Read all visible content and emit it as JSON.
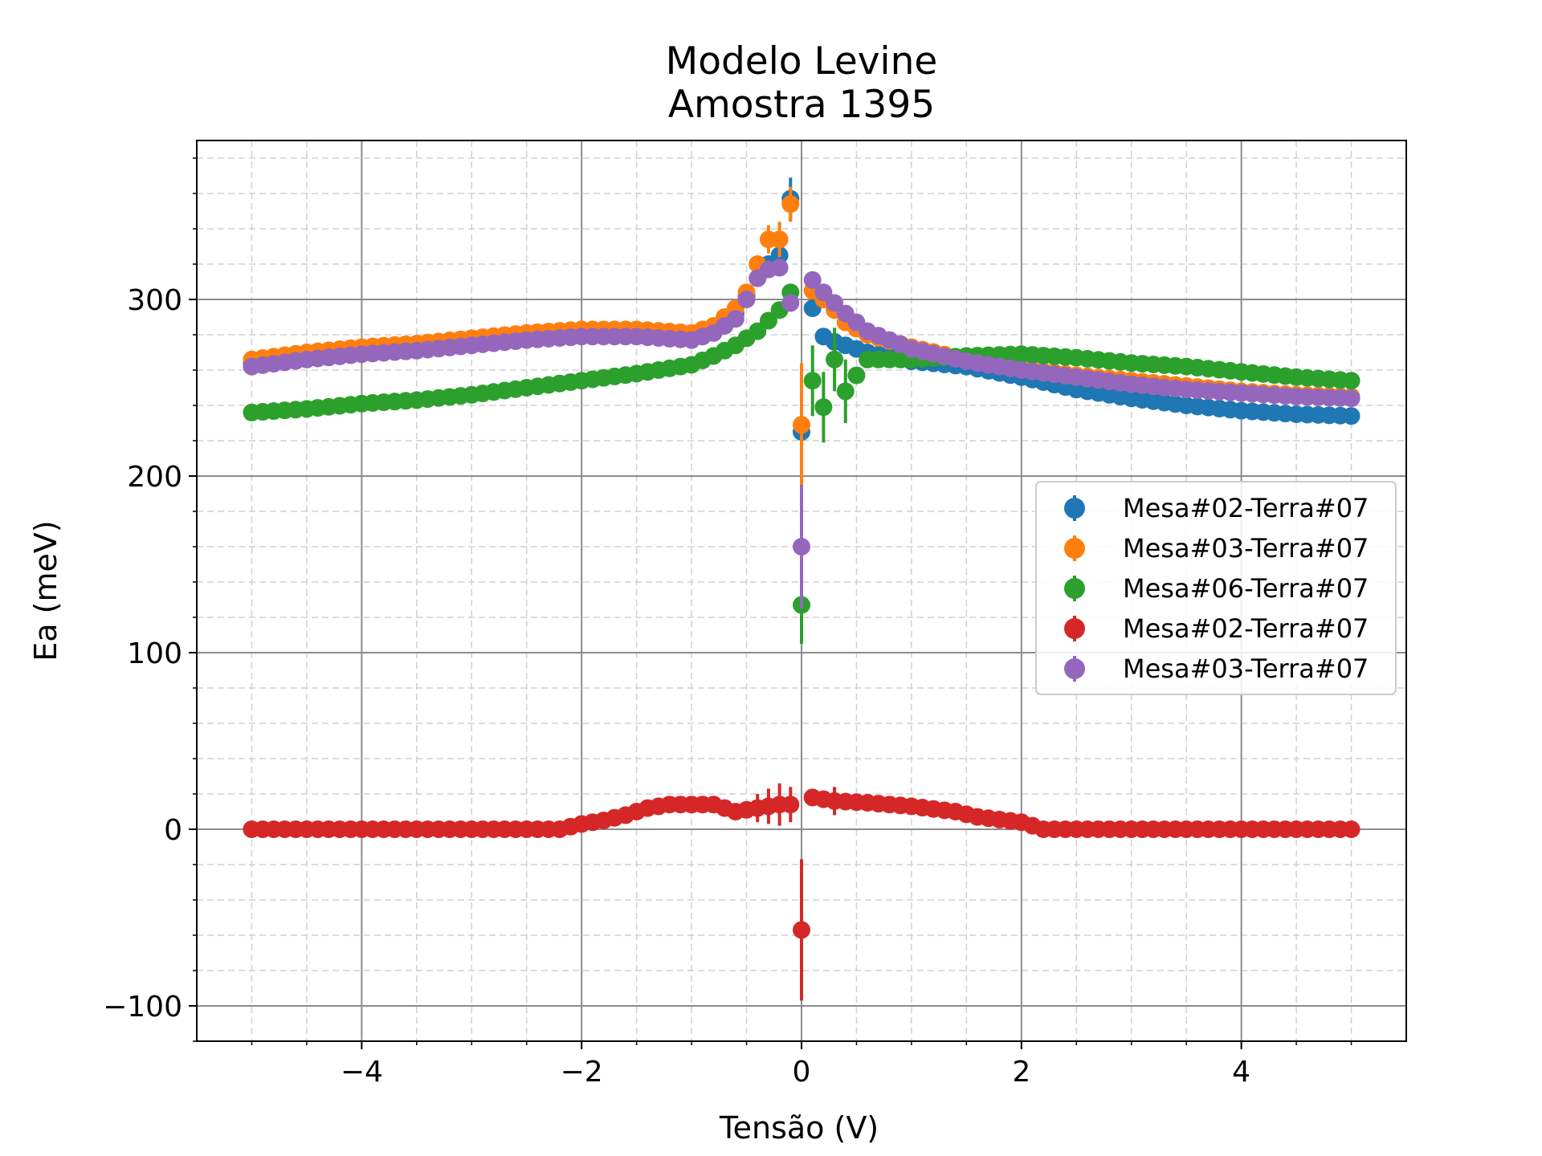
{
  "chart_data": {
    "type": "scatter",
    "title": "Modelo Levine",
    "subtitle": "Amostra 1395",
    "xlabel": "Tensão (V)",
    "ylabel": "Ea (meV)",
    "xlim": [
      -5.5,
      5.5
    ],
    "ylim": [
      -120,
      390
    ],
    "xticks": [
      -4,
      -2,
      0,
      2,
      4
    ],
    "xtick_labels": [
      "−4",
      "−2",
      "0",
      "2",
      "4"
    ],
    "yticks": [
      -100,
      0,
      100,
      200,
      300
    ],
    "ytick_labels": [
      "−100",
      "0",
      "100",
      "200",
      "300"
    ],
    "grid": true,
    "minor_grid": true,
    "legend_position": "center-right",
    "series": [
      {
        "name": "Mesa#02-Terra#07",
        "color": "#1f77b4",
        "points": [
          [
            -5.0,
            264
          ],
          [
            -4.5,
            268
          ],
          [
            -4.0,
            271
          ],
          [
            -3.5,
            273
          ],
          [
            -3.0,
            276
          ],
          [
            -2.5,
            279
          ],
          [
            -2.0,
            281
          ],
          [
            -1.5,
            281
          ],
          [
            -1.0,
            279
          ],
          [
            -0.8,
            282
          ],
          [
            -0.6,
            292
          ],
          [
            -0.5,
            302
          ],
          [
            -0.4,
            312
          ],
          [
            -0.3,
            320
          ],
          [
            -0.2,
            325
          ],
          [
            -0.1,
            357
          ],
          [
            0.0,
            225
          ],
          [
            0.1,
            295
          ],
          [
            0.2,
            279
          ],
          [
            0.3,
            276
          ],
          [
            0.4,
            274
          ],
          [
            0.6,
            270
          ],
          [
            1.0,
            265
          ],
          [
            1.5,
            262
          ],
          [
            2.0,
            256
          ],
          [
            2.5,
            249
          ],
          [
            3.0,
            244
          ],
          [
            3.5,
            240
          ],
          [
            4.0,
            237
          ],
          [
            4.5,
            235
          ],
          [
            5.0,
            234
          ]
        ],
        "errors": [
          [
            -0.2,
            10
          ],
          [
            -0.1,
            12
          ],
          [
            0.0,
            35
          ]
        ]
      },
      {
        "name": "Mesa#03-Terra#07",
        "color": "#ff7f0e",
        "points": [
          [
            -5.0,
            266
          ],
          [
            -4.5,
            270
          ],
          [
            -4.0,
            273
          ],
          [
            -3.5,
            275
          ],
          [
            -3.0,
            278
          ],
          [
            -2.5,
            281
          ],
          [
            -2.0,
            283
          ],
          [
            -1.5,
            283
          ],
          [
            -1.0,
            281
          ],
          [
            -0.8,
            285
          ],
          [
            -0.6,
            295
          ],
          [
            -0.5,
            304
          ],
          [
            -0.4,
            320
          ],
          [
            -0.3,
            334
          ],
          [
            -0.2,
            334
          ],
          [
            -0.1,
            354
          ],
          [
            0.0,
            229
          ],
          [
            0.1,
            305
          ],
          [
            0.2,
            300
          ],
          [
            0.3,
            294
          ],
          [
            0.4,
            287
          ],
          [
            0.6,
            280
          ],
          [
            1.0,
            273
          ],
          [
            1.5,
            266
          ],
          [
            2.0,
            261
          ],
          [
            2.5,
            257
          ],
          [
            3.0,
            254
          ],
          [
            3.5,
            251
          ],
          [
            4.0,
            248
          ],
          [
            4.5,
            246
          ],
          [
            5.0,
            245
          ]
        ],
        "errors": [
          [
            -0.3,
            8
          ],
          [
            -0.2,
            10
          ],
          [
            -0.1,
            10
          ],
          [
            0.0,
            35
          ]
        ]
      },
      {
        "name": "Mesa#06-Terra#07",
        "color": "#2ca02c",
        "points": [
          [
            -5.0,
            236
          ],
          [
            -4.5,
            238
          ],
          [
            -4.0,
            241
          ],
          [
            -3.5,
            243
          ],
          [
            -3.0,
            246
          ],
          [
            -2.5,
            250
          ],
          [
            -2.0,
            254
          ],
          [
            -1.5,
            258
          ],
          [
            -1.0,
            263
          ],
          [
            -0.8,
            268
          ],
          [
            -0.6,
            274
          ],
          [
            -0.4,
            282
          ],
          [
            -0.3,
            288
          ],
          [
            -0.2,
            294
          ],
          [
            -0.1,
            304
          ],
          [
            0.0,
            127
          ],
          [
            0.1,
            254
          ],
          [
            0.2,
            239
          ],
          [
            0.3,
            266
          ],
          [
            0.4,
            248
          ],
          [
            0.6,
            266
          ],
          [
            1.0,
            266
          ],
          [
            1.5,
            268
          ],
          [
            2.0,
            269
          ],
          [
            2.5,
            267
          ],
          [
            3.0,
            264
          ],
          [
            3.5,
            262
          ],
          [
            4.0,
            259
          ],
          [
            4.5,
            256
          ],
          [
            5.0,
            254
          ]
        ],
        "errors": [
          [
            0.0,
            22
          ],
          [
            0.1,
            20
          ],
          [
            0.2,
            20
          ],
          [
            0.3,
            18
          ],
          [
            0.4,
            18
          ]
        ]
      },
      {
        "name": "Mesa#02-Terra#07",
        "color": "#d62728",
        "points": [
          [
            -5.0,
            0
          ],
          [
            -4.5,
            0
          ],
          [
            -4.0,
            0
          ],
          [
            -3.5,
            0
          ],
          [
            -3.0,
            0
          ],
          [
            -2.5,
            0
          ],
          [
            -2.2,
            0
          ],
          [
            -2.0,
            3
          ],
          [
            -1.8,
            5
          ],
          [
            -1.6,
            8
          ],
          [
            -1.4,
            12
          ],
          [
            -1.2,
            14
          ],
          [
            -1.0,
            14
          ],
          [
            -0.8,
            14
          ],
          [
            -0.6,
            10
          ],
          [
            -0.4,
            12
          ],
          [
            -0.3,
            13
          ],
          [
            -0.2,
            14
          ],
          [
            -0.1,
            14
          ],
          [
            0.0,
            -57
          ],
          [
            0.1,
            18
          ],
          [
            0.3,
            16
          ],
          [
            0.6,
            15
          ],
          [
            1.0,
            13
          ],
          [
            1.4,
            10
          ],
          [
            1.6,
            7
          ],
          [
            2.0,
            4
          ],
          [
            2.2,
            0
          ],
          [
            2.5,
            0
          ],
          [
            3.0,
            0
          ],
          [
            3.5,
            0
          ],
          [
            4.0,
            0
          ],
          [
            4.5,
            0
          ],
          [
            5.0,
            0
          ]
        ],
        "errors": [
          [
            -0.4,
            8
          ],
          [
            -0.3,
            10
          ],
          [
            -0.2,
            12
          ],
          [
            -0.1,
            10
          ],
          [
            0.0,
            40
          ],
          [
            0.3,
            8
          ]
        ]
      },
      {
        "name": "Mesa#03-Terra#07",
        "color": "#9467bd",
        "points": [
          [
            -5.0,
            262
          ],
          [
            -4.5,
            266
          ],
          [
            -4.0,
            269
          ],
          [
            -3.5,
            271
          ],
          [
            -3.0,
            274
          ],
          [
            -2.5,
            277
          ],
          [
            -2.0,
            279
          ],
          [
            -1.5,
            279
          ],
          [
            -1.0,
            277
          ],
          [
            -0.8,
            281
          ],
          [
            -0.6,
            289
          ],
          [
            -0.5,
            300
          ],
          [
            -0.4,
            312
          ],
          [
            -0.3,
            317
          ],
          [
            -0.2,
            318
          ],
          [
            -0.1,
            298
          ],
          [
            0.0,
            160
          ],
          [
            0.1,
            311
          ],
          [
            0.2,
            304
          ],
          [
            0.3,
            298
          ],
          [
            0.4,
            292
          ],
          [
            0.6,
            282
          ],
          [
            1.0,
            272
          ],
          [
            1.5,
            265
          ],
          [
            2.0,
            260
          ],
          [
            2.5,
            256
          ],
          [
            3.0,
            252
          ],
          [
            3.5,
            249
          ],
          [
            4.0,
            247
          ],
          [
            4.5,
            245
          ],
          [
            5.0,
            244
          ]
        ],
        "errors": [
          [
            0.0,
            35
          ]
        ]
      }
    ]
  }
}
